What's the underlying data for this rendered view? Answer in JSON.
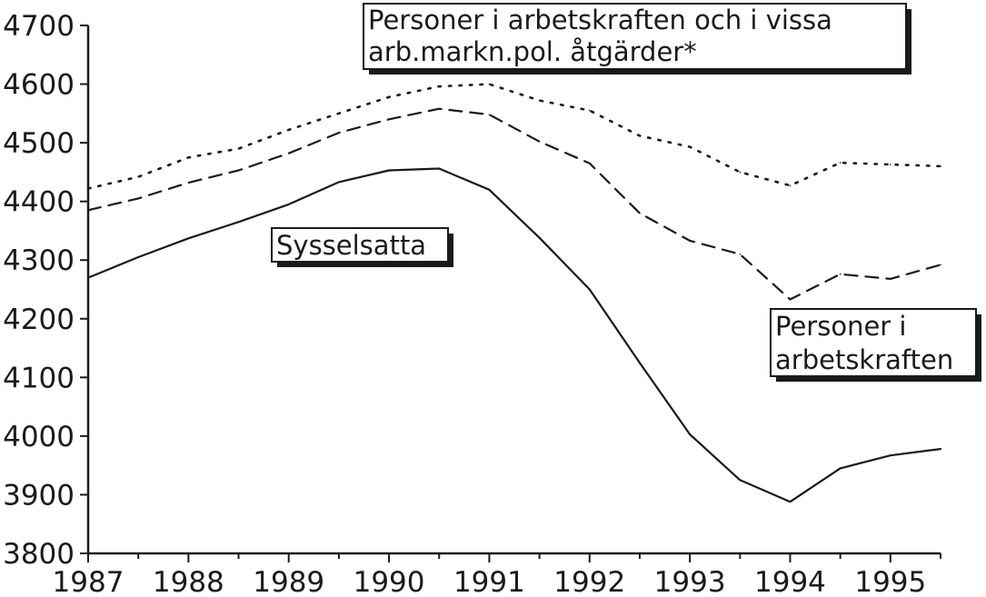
{
  "chart_data": {
    "type": "line",
    "x": [
      1987.0,
      1987.5,
      1988.0,
      1988.5,
      1989.0,
      1989.5,
      1990.0,
      1990.5,
      1991.0,
      1991.5,
      1992.0,
      1992.5,
      1993.0,
      1993.5,
      1994.0,
      1994.5,
      1995.0,
      1995.5
    ],
    "xticks": [
      "1987",
      "1988",
      "1989",
      "1990",
      "1991",
      "1992",
      "1993",
      "1994",
      "1995"
    ],
    "xlim": [
      1987,
      1995.5
    ],
    "yticks": [
      "3800",
      "3900",
      "4000",
      "4100",
      "4200",
      "4300",
      "4400",
      "4500",
      "4600",
      "4700"
    ],
    "ylim": [
      3800,
      4700
    ],
    "grid": false,
    "series": [
      {
        "name": "Personer i arbetskraften och i vissa arb.markn.pol. åtgärder*",
        "style": "dotted",
        "values": [
          4422,
          4442,
          4475,
          4490,
          4522,
          4550,
          4578,
          4596,
          4600,
          4572,
          4555,
          4512,
          4493,
          4450,
          4427,
          4466,
          4463,
          4460
        ]
      },
      {
        "name": "Personer i arbetskraften",
        "style": "dashed",
        "values": [
          4385,
          4405,
          4432,
          4453,
          4482,
          4517,
          4540,
          4558,
          4548,
          4502,
          4465,
          4380,
          4333,
          4310,
          4233,
          4276,
          4268,
          4292
        ]
      },
      {
        "name": "Sysselsatta",
        "style": "solid",
        "values": [
          4270,
          4305,
          4337,
          4365,
          4395,
          4433,
          4453,
          4456,
          4420,
          4338,
          4250,
          4125,
          4003,
          3925,
          3888,
          3945,
          3967,
          3978
        ]
      }
    ],
    "annotations": [
      {
        "lines": [
          "Personer i arbetskraften och i vissa",
          "arb.markn.pol. åtgärder*"
        ]
      },
      {
        "lines": [
          "Sysselsatta"
        ]
      },
      {
        "lines": [
          "Personer i",
          "arbetskraften"
        ]
      }
    ],
    "colors": {
      "ink": "#1a1a1a",
      "background": "#ffffff"
    }
  }
}
